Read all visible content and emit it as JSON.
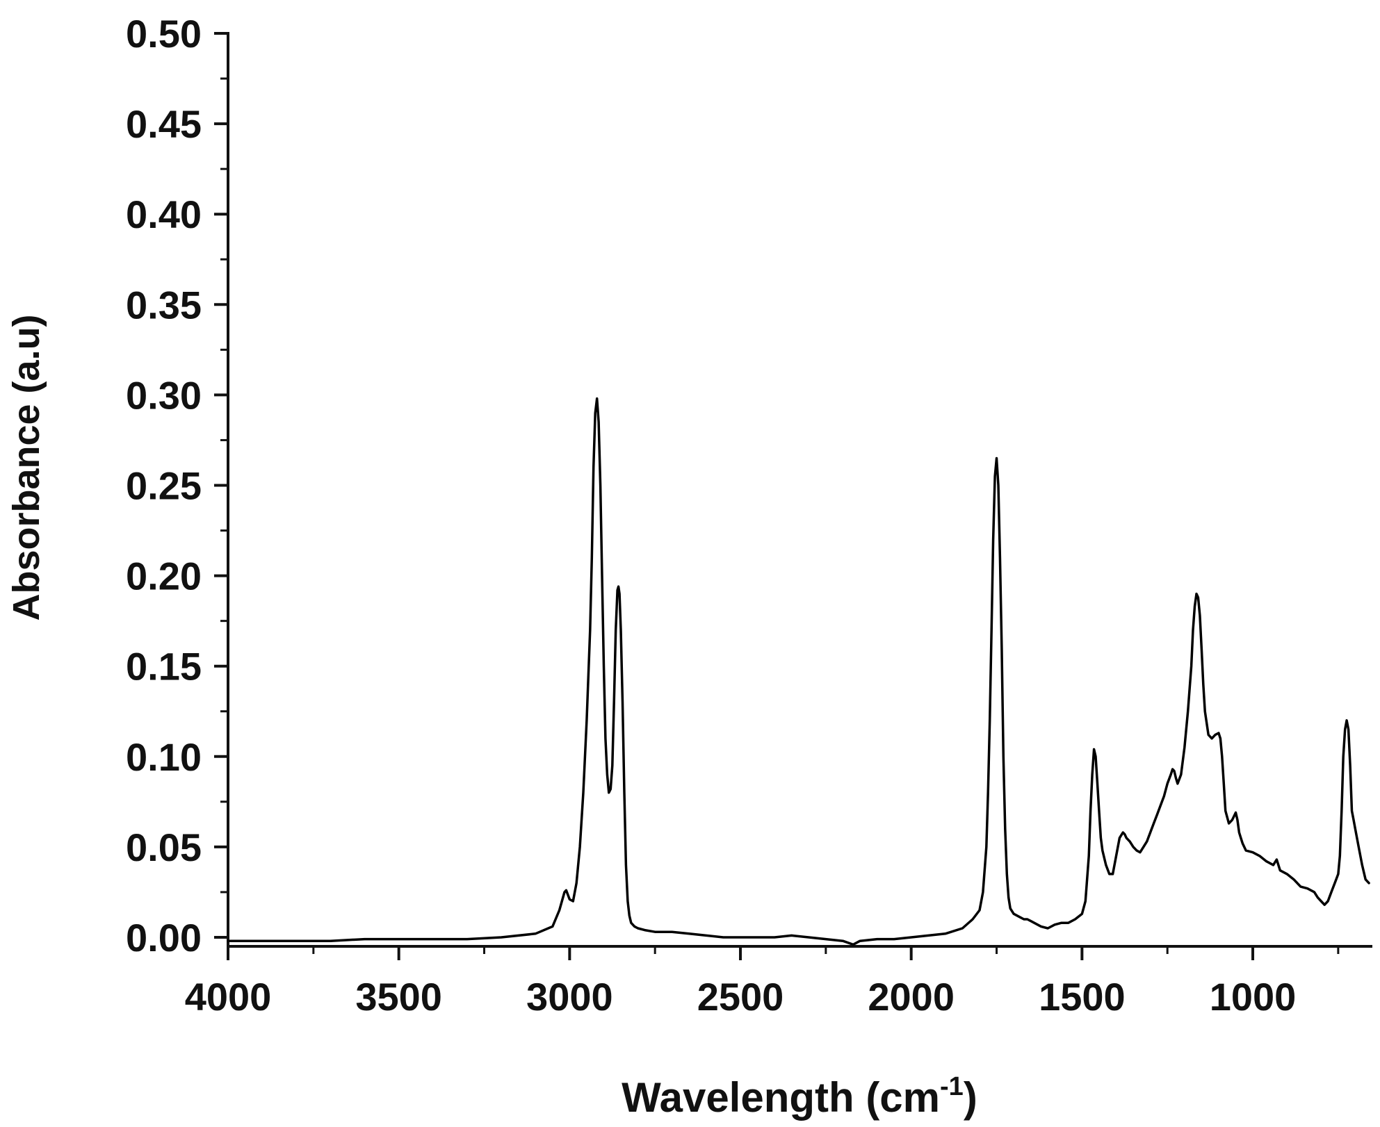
{
  "chart_data": {
    "type": "line",
    "xlabel": "Wavelength (cm",
    "xlabel_sup": "-1",
    "xlabel_close": ")",
    "ylabel": "Absorbance (a.u)",
    "xlim": [
      4000,
      650
    ],
    "x_reversed": true,
    "ylim": [
      -0.005,
      0.5
    ],
    "x_ticks": [
      4000,
      3500,
      3000,
      2500,
      2000,
      1500,
      1000
    ],
    "x_tick_labels": [
      "4000",
      "3500",
      "3000",
      "2500",
      "2000",
      "1500",
      "1000"
    ],
    "y_ticks": [
      0.0,
      0.05,
      0.1,
      0.15,
      0.2,
      0.25,
      0.3,
      0.35,
      0.4,
      0.45,
      0.5
    ],
    "y_tick_labels": [
      "0.00",
      "0.05",
      "0.10",
      "0.15",
      "0.20",
      "0.25",
      "0.30",
      "0.35",
      "0.40",
      "0.45",
      "0.50"
    ],
    "grid": false,
    "line_color": "#000000",
    "series": [
      {
        "x": [
          4000,
          3900,
          3800,
          3700,
          3600,
          3500,
          3400,
          3300,
          3200,
          3100,
          3050,
          3030,
          3015,
          3010,
          3000,
          2990,
          2980,
          2970,
          2960,
          2950,
          2940,
          2935,
          2930,
          2925,
          2920,
          2915,
          2910,
          2905,
          2900,
          2895,
          2890,
          2885,
          2880,
          2875,
          2870,
          2865,
          2860,
          2857,
          2854,
          2850,
          2845,
          2840,
          2835,
          2830,
          2825,
          2820,
          2810,
          2800,
          2780,
          2750,
          2700,
          2650,
          2600,
          2550,
          2500,
          2450,
          2400,
          2350,
          2300,
          2250,
          2200,
          2170,
          2150,
          2100,
          2050,
          2000,
          1950,
          1900,
          1850,
          1820,
          1800,
          1790,
          1780,
          1775,
          1770,
          1765,
          1760,
          1755,
          1750,
          1745,
          1740,
          1735,
          1730,
          1725,
          1720,
          1715,
          1710,
          1700,
          1690,
          1680,
          1670,
          1660,
          1650,
          1640,
          1620,
          1600,
          1580,
          1560,
          1540,
          1520,
          1500,
          1490,
          1480,
          1475,
          1470,
          1465,
          1460,
          1455,
          1450,
          1445,
          1440,
          1430,
          1420,
          1410,
          1400,
          1390,
          1380,
          1375,
          1370,
          1360,
          1350,
          1340,
          1330,
          1320,
          1310,
          1300,
          1290,
          1280,
          1270,
          1260,
          1250,
          1240,
          1235,
          1230,
          1225,
          1220,
          1210,
          1200,
          1190,
          1180,
          1175,
          1170,
          1165,
          1160,
          1155,
          1150,
          1145,
          1140,
          1130,
          1120,
          1110,
          1100,
          1095,
          1090,
          1085,
          1080,
          1070,
          1060,
          1050,
          1045,
          1040,
          1035,
          1030,
          1020,
          1000,
          980,
          960,
          940,
          930,
          920,
          900,
          880,
          860,
          840,
          820,
          810,
          800,
          790,
          780,
          770,
          760,
          750,
          745,
          740,
          735,
          730,
          725,
          720,
          715,
          710,
          705,
          700,
          690,
          680,
          670,
          660
        ],
        "y": [
          -0.002,
          -0.002,
          -0.002,
          -0.002,
          -0.001,
          -0.001,
          -0.001,
          -0.001,
          0.0,
          0.002,
          0.006,
          0.015,
          0.025,
          0.026,
          0.021,
          0.02,
          0.03,
          0.05,
          0.08,
          0.12,
          0.17,
          0.21,
          0.26,
          0.29,
          0.298,
          0.285,
          0.25,
          0.2,
          0.15,
          0.11,
          0.09,
          0.08,
          0.082,
          0.095,
          0.13,
          0.17,
          0.192,
          0.194,
          0.19,
          0.17,
          0.13,
          0.08,
          0.04,
          0.02,
          0.012,
          0.008,
          0.006,
          0.005,
          0.004,
          0.003,
          0.003,
          0.002,
          0.001,
          0.0,
          0.0,
          0.0,
          0.0,
          0.001,
          0.0,
          -0.001,
          -0.002,
          -0.004,
          -0.002,
          -0.001,
          -0.001,
          0.0,
          0.001,
          0.002,
          0.005,
          0.01,
          0.015,
          0.025,
          0.05,
          0.08,
          0.12,
          0.17,
          0.22,
          0.255,
          0.265,
          0.25,
          0.21,
          0.16,
          0.1,
          0.06,
          0.035,
          0.022,
          0.016,
          0.013,
          0.012,
          0.011,
          0.01,
          0.01,
          0.009,
          0.008,
          0.006,
          0.005,
          0.007,
          0.008,
          0.008,
          0.01,
          0.013,
          0.02,
          0.045,
          0.07,
          0.09,
          0.104,
          0.1,
          0.085,
          0.07,
          0.055,
          0.048,
          0.04,
          0.035,
          0.035,
          0.045,
          0.055,
          0.058,
          0.057,
          0.055,
          0.053,
          0.05,
          0.048,
          0.047,
          0.05,
          0.053,
          0.058,
          0.063,
          0.068,
          0.073,
          0.078,
          0.085,
          0.09,
          0.093,
          0.092,
          0.088,
          0.085,
          0.09,
          0.105,
          0.125,
          0.15,
          0.17,
          0.183,
          0.19,
          0.188,
          0.178,
          0.16,
          0.14,
          0.125,
          0.112,
          0.11,
          0.112,
          0.113,
          0.11,
          0.1,
          0.085,
          0.07,
          0.063,
          0.065,
          0.069,
          0.065,
          0.058,
          0.055,
          0.052,
          0.048,
          0.047,
          0.045,
          0.042,
          0.04,
          0.043,
          0.037,
          0.035,
          0.032,
          0.028,
          0.027,
          0.025,
          0.022,
          0.02,
          0.018,
          0.02,
          0.025,
          0.03,
          0.035,
          0.045,
          0.07,
          0.1,
          0.115,
          0.12,
          0.115,
          0.095,
          0.07,
          0.065,
          0.06,
          0.05,
          0.04,
          0.032,
          0.03
        ]
      }
    ]
  }
}
